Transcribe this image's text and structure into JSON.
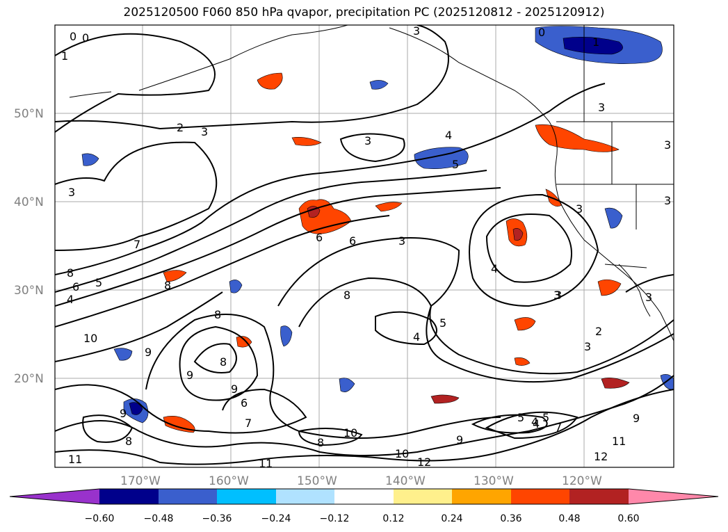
{
  "title": "2025120500 F060 850 hPa qvapor, precipitation PC (2025120812 - 2025120912)",
  "lat_labels": [
    "50°N",
    "40°N",
    "30°N",
    "20°N"
  ],
  "lon_labels": [
    "170°W",
    "160°W",
    "150°W",
    "140°W",
    "130°W",
    "120°W"
  ],
  "contour_labels": [
    "0",
    "1",
    "0",
    "3",
    "0",
    "1",
    "2",
    "3",
    "3",
    "4",
    "5",
    "3",
    "3",
    "3",
    "3",
    "3",
    "4",
    "3",
    "3",
    "7",
    "6",
    "8",
    "5",
    "6",
    "8",
    "4",
    "10",
    "6",
    "5",
    "8",
    "8",
    "3",
    "4",
    "3",
    "2",
    "3",
    "5",
    "4",
    "8",
    "9",
    "9",
    "9",
    "6",
    "7",
    "8",
    "9",
    "8",
    "10",
    "10",
    "11",
    "11",
    "12",
    "12",
    "11",
    "9",
    "5",
    "4",
    "7",
    "9"
  ],
  "colorbar": {
    "ticks": [
      "−0.60",
      "−0.48",
      "−0.36",
      "−0.24",
      "−0.12",
      "0.12",
      "0.24",
      "0.36",
      "0.48",
      "0.60"
    ],
    "colors": [
      "#9932cc",
      "#00008b",
      "#3a5fcd",
      "#00bfff",
      "#b0e2ff",
      "#ffffff",
      "#fff08c",
      "#ffa500",
      "#ff4500",
      "#b22222",
      "#ff88aa"
    ]
  },
  "legend_colors": {
    "contour": "#000000",
    "grid": "#a0a0a0",
    "coast": "#000000"
  }
}
